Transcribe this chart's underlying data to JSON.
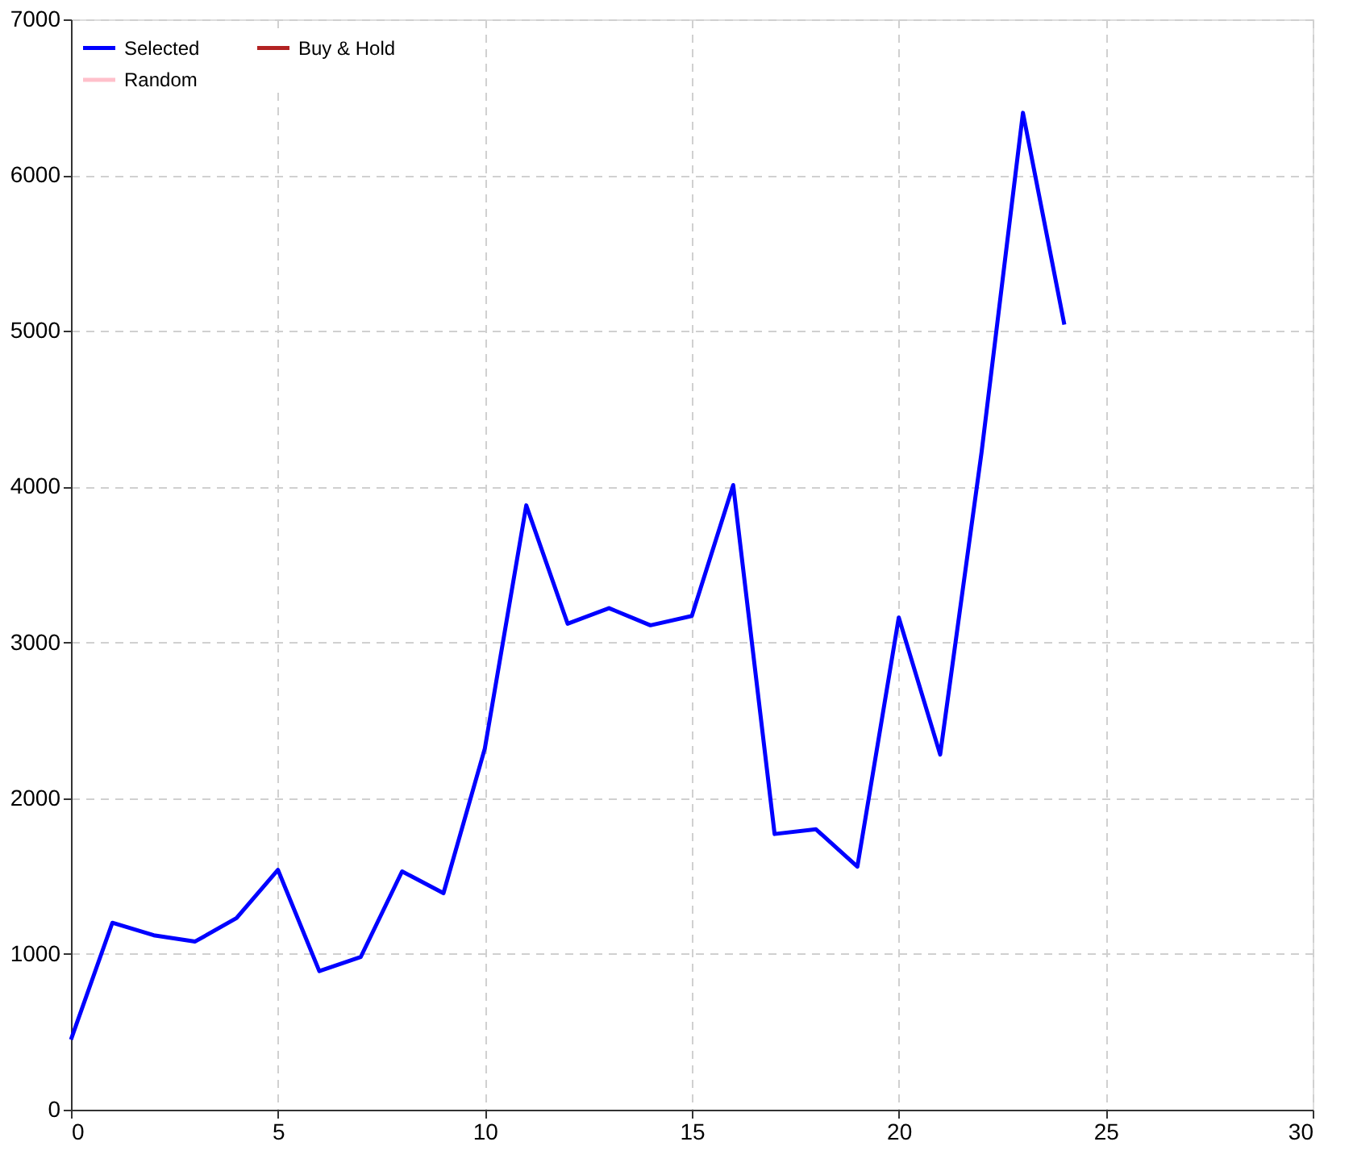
{
  "chart_data": {
    "type": "line",
    "x": [
      0,
      1,
      2,
      3,
      4,
      5,
      6,
      7,
      8,
      9,
      10,
      11,
      12,
      13,
      14,
      15,
      16,
      17,
      18,
      19,
      20,
      21,
      22,
      23,
      24
    ],
    "series": [
      {
        "name": "Selected",
        "color": "#0000ff",
        "values": [
          450,
          1200,
          1120,
          1080,
          1230,
          1540,
          890,
          980,
          1530,
          1390,
          2320,
          3880,
          3120,
          3220,
          3110,
          3170,
          4010,
          1770,
          1800,
          1560,
          3160,
          2280,
          4220,
          6400,
          5040
        ]
      },
      {
        "name": "Buy & Hold",
        "color": "#b22222",
        "values": [
          null,
          null,
          null,
          null,
          null,
          null,
          null,
          null,
          null,
          null,
          null,
          null,
          null,
          null,
          null,
          null,
          null,
          null,
          null,
          null,
          null,
          null,
          null,
          null,
          null
        ]
      },
      {
        "name": "Random",
        "color": "#ffc0cb",
        "values": [
          null,
          null,
          null,
          null,
          null,
          null,
          null,
          null,
          null,
          null,
          null,
          null,
          null,
          null,
          null,
          null,
          null,
          null,
          null,
          null,
          null,
          null,
          null,
          null,
          null
        ]
      }
    ],
    "xlim": [
      0,
      30
    ],
    "xticks": [
      0,
      5,
      10,
      15,
      20,
      25,
      30
    ],
    "ylim": [
      0,
      7000
    ],
    "yticks": [
      0,
      1000,
      2000,
      3000,
      4000,
      5000,
      6000,
      7000
    ],
    "grid": true,
    "legend": "top left",
    "marker": "none",
    "line_style": "solid"
  }
}
